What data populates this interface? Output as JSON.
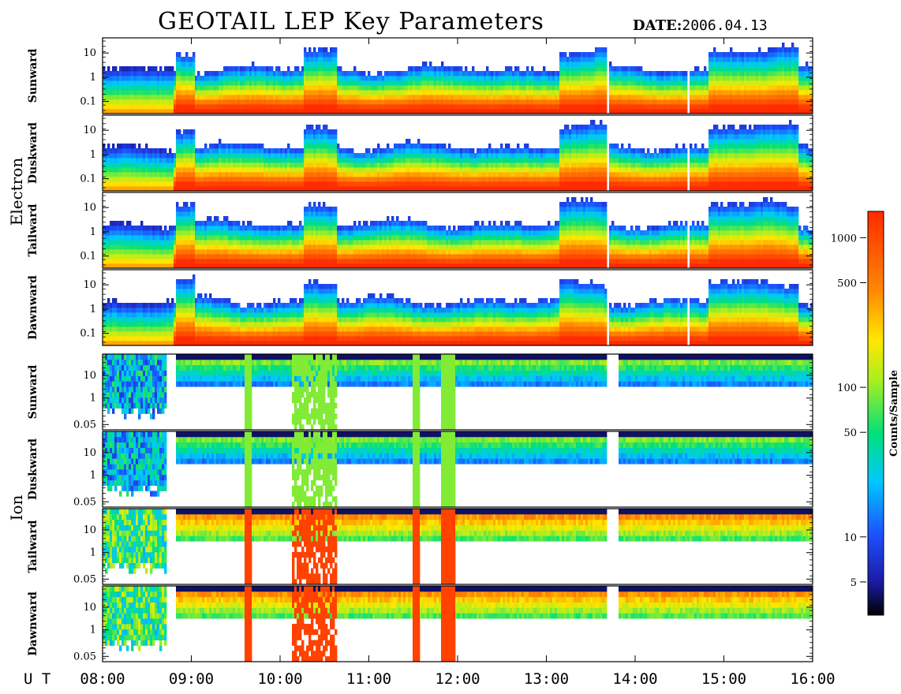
{
  "title": "GEOTAIL LEP Key Parameters",
  "date": {
    "label": "DATE:",
    "value": "2006.04.13"
  },
  "chart_data": {
    "type": "heatmap",
    "title": "GEOTAIL LEP Key Parameters",
    "time_axis": {
      "prefix": "U T",
      "range": [
        "08:00",
        "16:00"
      ],
      "ticks": [
        "08:00",
        "09:00",
        "10:00",
        "11:00",
        "12:00",
        "13:00",
        "14:00",
        "15:00",
        "16:00"
      ]
    },
    "groups": [
      {
        "name": "Electron",
        "y_ticks": [
          "10",
          "1",
          "0.1"
        ],
        "panels": [
          "Sunward",
          "Duskward",
          "Tailward",
          "Dawnward"
        ]
      },
      {
        "name": "Ion",
        "y_ticks": [
          "10",
          "1",
          "0.05"
        ],
        "panels": [
          "Sunward",
          "Duskward",
          "Tailward",
          "Dawnward"
        ]
      }
    ],
    "colorbar": {
      "title": "Counts/Sample",
      "scale": "log",
      "range": [
        3,
        1500
      ],
      "ticks": [
        "1000",
        "500",
        "100",
        "50",
        "10",
        "5"
      ],
      "tick_values": [
        1000,
        500,
        100,
        50,
        10,
        5
      ]
    }
  }
}
